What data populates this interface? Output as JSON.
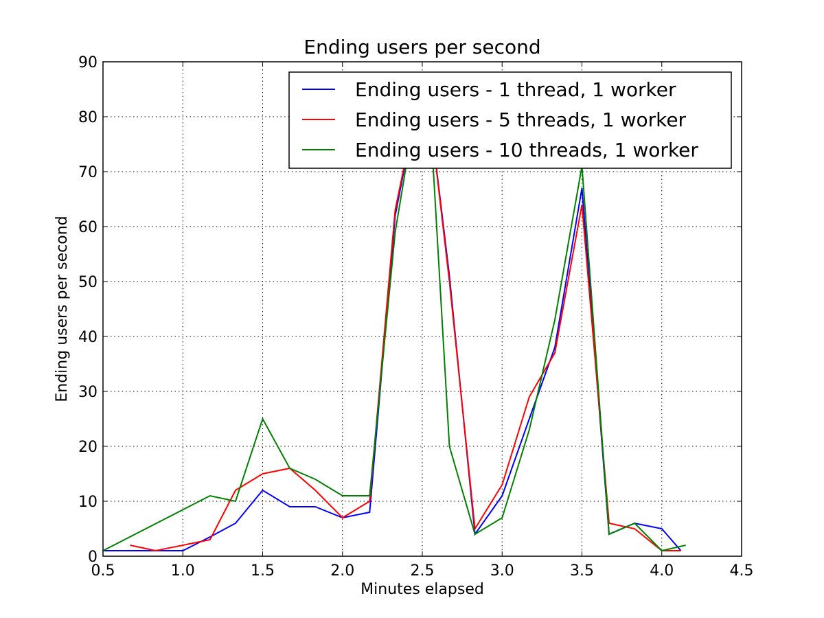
{
  "chart_data": {
    "type": "line",
    "title": "Ending users per second",
    "xlabel": "Minutes elapsed",
    "ylabel": "Ending users per second",
    "xlim": [
      0.5,
      4.5
    ],
    "ylim": [
      0,
      90
    ],
    "xticks": [
      "0.5",
      "1.0",
      "1.5",
      "2.0",
      "2.5",
      "3.0",
      "3.5",
      "4.0",
      "4.5"
    ],
    "yticks": [
      "0",
      "10",
      "20",
      "30",
      "40",
      "50",
      "60",
      "70",
      "80",
      "90"
    ],
    "grid": true,
    "legend_position": "top-right",
    "series": [
      {
        "name": "Ending users - 1 thread, 1 worker",
        "color": "#0000ff",
        "x": [
          0.5,
          1.0,
          1.17,
          1.33,
          1.5,
          1.67,
          1.83,
          2.0,
          2.17,
          2.33,
          2.45,
          2.55,
          2.67,
          2.83,
          3.0,
          3.17,
          3.33,
          3.5,
          3.67,
          3.83,
          4.0,
          4.12
        ],
        "y": [
          1,
          1,
          3.5,
          6,
          12,
          9,
          9,
          7,
          8,
          62,
          80,
          80,
          51,
          4,
          11,
          25,
          38,
          67,
          4,
          6,
          5,
          1
        ]
      },
      {
        "name": "Ending users - 5 threads, 1 worker",
        "color": "#ff0000",
        "x": [
          0.67,
          0.83,
          1.0,
          1.17,
          1.33,
          1.5,
          1.67,
          1.83,
          2.0,
          2.17,
          2.33,
          2.45,
          2.55,
          2.67,
          2.83,
          3.0,
          3.17,
          3.33,
          3.5,
          3.67,
          3.83,
          4.0,
          4.12
        ],
        "y": [
          2,
          1,
          2,
          3,
          12,
          15,
          16,
          12,
          7,
          10,
          63,
          80,
          80,
          50,
          5,
          13,
          29,
          37,
          64,
          6,
          5,
          1,
          1
        ]
      },
      {
        "name": "Ending users - 10 threads, 1 worker",
        "color": "#008000",
        "x": [
          0.5,
          1.17,
          1.33,
          1.5,
          1.67,
          1.83,
          2.0,
          2.17,
          2.33,
          2.45,
          2.55,
          2.67,
          2.83,
          3.0,
          3.17,
          3.33,
          3.5,
          3.67,
          3.83,
          4.0,
          4.15
        ],
        "y": [
          1,
          11,
          10,
          25,
          16,
          14,
          11,
          11,
          59,
          80,
          80,
          20,
          4,
          7,
          23,
          43,
          71,
          4,
          6,
          1,
          2
        ]
      }
    ]
  }
}
